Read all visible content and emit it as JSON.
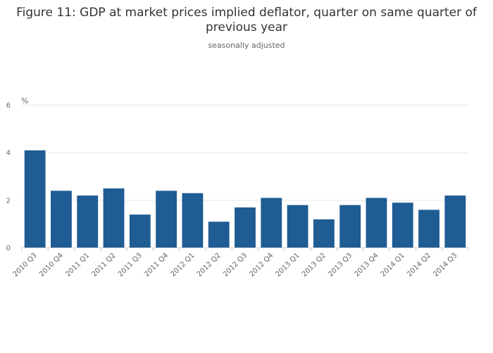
{
  "chart_data": {
    "type": "bar",
    "title": "Figure 11: GDP at market prices implied deflator, quarter on same quarter of previous year",
    "subtitle": "seasonally adjusted",
    "xlabel": "",
    "ylabel": "%",
    "ylim": [
      0,
      6
    ],
    "yticks": [
      0,
      2,
      4,
      6
    ],
    "grid": true,
    "bar_color": "#1f5c94",
    "grid_color": "#e6e6e6",
    "categories": [
      "2010 Q3",
      "2010 Q4",
      "2011 Q1",
      "2011 Q2",
      "2011 Q3",
      "2011 Q4",
      "2012 Q1",
      "2012 Q2",
      "2012 Q3",
      "2012 Q4",
      "2013 Q1",
      "2013 Q2",
      "2013 Q3",
      "2013 Q4",
      "2014 Q1",
      "2014 Q2",
      "2014 Q3"
    ],
    "values": [
      4.1,
      2.4,
      2.2,
      2.5,
      1.4,
      2.4,
      2.3,
      1.1,
      1.7,
      2.1,
      1.8,
      1.2,
      1.8,
      2.1,
      1.9,
      1.6,
      2.2
    ]
  }
}
